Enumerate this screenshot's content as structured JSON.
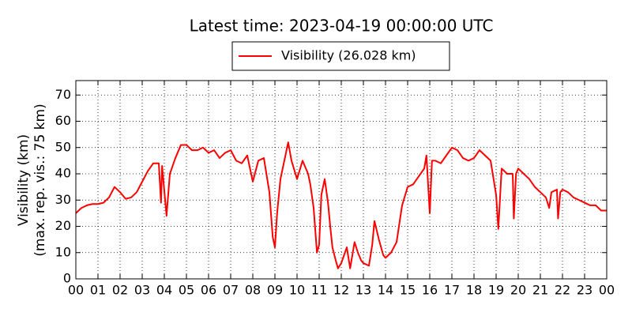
{
  "chart_data": {
    "type": "line",
    "title": "Latest time: 2023-04-19 00:00:00 UTC",
    "y_label": [
      "Visibility (km)",
      "(max. rep. vis.: 75 km)"
    ],
    "x": [
      0,
      0.25,
      0.5,
      0.75,
      1,
      1.25,
      1.5,
      1.75,
      2,
      2.25,
      2.5,
      2.75,
      3,
      3.25,
      3.5,
      3.75,
      3.85,
      3.9,
      4.1,
      4.25,
      4.5,
      4.75,
      5,
      5.25,
      5.5,
      5.75,
      6,
      6.25,
      6.5,
      6.75,
      7,
      7.25,
      7.5,
      7.75,
      8,
      8.25,
      8.5,
      8.75,
      8.9,
      9,
      9.1,
      9.25,
      9.5,
      9.6,
      9.75,
      10,
      10.25,
      10.5,
      10.6,
      10.75,
      10.9,
      11,
      11.1,
      11.25,
      11.4,
      11.5,
      11.6,
      11.75,
      11.85,
      12,
      12.25,
      12.4,
      12.6,
      12.75,
      12.9,
      13,
      13.25,
      13.4,
      13.5,
      13.7,
      13.9,
      14,
      14.25,
      14.5,
      14.75,
      15,
      15.25,
      15.5,
      15.75,
      15.85,
      16,
      16.1,
      16.25,
      16.5,
      16.75,
      17,
      17.25,
      17.5,
      17.75,
      18,
      18.25,
      18.5,
      18.75,
      19,
      19.1,
      19.25,
      19.5,
      19.75,
      19.8,
      19.9,
      20,
      20.25,
      20.5,
      20.75,
      21,
      21.25,
      21.4,
      21.5,
      21.75,
      21.8,
      21.9,
      22,
      22.25,
      22.5,
      22.75,
      23,
      23.25,
      23.5,
      23.75,
      24
    ],
    "series": [
      {
        "name": "Visibility (26.028 km)",
        "color": "#ff0000",
        "values": [
          25,
          27,
          28,
          28.5,
          28.5,
          29,
          31,
          35,
          33,
          30.5,
          31,
          33,
          37,
          41,
          44,
          44,
          29,
          43,
          24,
          40,
          46,
          51,
          51,
          49,
          49,
          50,
          48,
          49,
          46,
          48,
          49,
          45,
          44,
          47,
          37,
          45,
          46,
          33,
          16,
          12,
          25,
          38,
          48,
          52,
          45,
          38,
          45,
          40,
          36,
          27,
          10,
          13,
          32,
          38,
          29,
          20,
          12,
          7,
          4,
          6,
          12,
          4,
          14,
          10,
          7,
          6,
          5,
          13,
          22,
          15,
          9,
          8,
          10,
          14,
          28,
          35,
          36,
          39,
          42,
          47,
          25,
          45,
          45,
          44,
          47,
          50,
          49,
          46,
          45,
          46,
          49,
          47,
          45,
          32,
          19,
          42,
          40,
          40,
          23,
          40,
          42,
          40,
          38,
          35,
          33,
          31,
          27,
          33,
          34,
          23,
          33,
          34,
          33,
          31,
          30,
          29,
          28,
          28,
          26,
          26
        ]
      }
    ],
    "xlim": [
      0,
      24
    ],
    "ylim": [
      0,
      75.5
    ],
    "xticks": [
      {
        "value": 0,
        "label": "00"
      },
      {
        "value": 1,
        "label": "01"
      },
      {
        "value": 2,
        "label": "02"
      },
      {
        "value": 3,
        "label": "03"
      },
      {
        "value": 4,
        "label": "04"
      },
      {
        "value": 5,
        "label": "05"
      },
      {
        "value": 6,
        "label": "06"
      },
      {
        "value": 7,
        "label": "07"
      },
      {
        "value": 8,
        "label": "08"
      },
      {
        "value": 9,
        "label": "09"
      },
      {
        "value": 10,
        "label": "10"
      },
      {
        "value": 11,
        "label": "11"
      },
      {
        "value": 12,
        "label": "12"
      },
      {
        "value": 13,
        "label": "13"
      },
      {
        "value": 14,
        "label": "14"
      },
      {
        "value": 15,
        "label": "15"
      },
      {
        "value": 16,
        "label": "16"
      },
      {
        "value": 17,
        "label": "17"
      },
      {
        "value": 18,
        "label": "18"
      },
      {
        "value": 19,
        "label": "19"
      },
      {
        "value": 20,
        "label": "20"
      },
      {
        "value": 21,
        "label": "21"
      },
      {
        "value": 22,
        "label": "22"
      },
      {
        "value": 23,
        "label": "23"
      },
      {
        "value": 24,
        "label": "00"
      }
    ],
    "yticks": [
      0,
      10,
      20,
      30,
      40,
      50,
      60,
      70
    ],
    "grid": true
  }
}
